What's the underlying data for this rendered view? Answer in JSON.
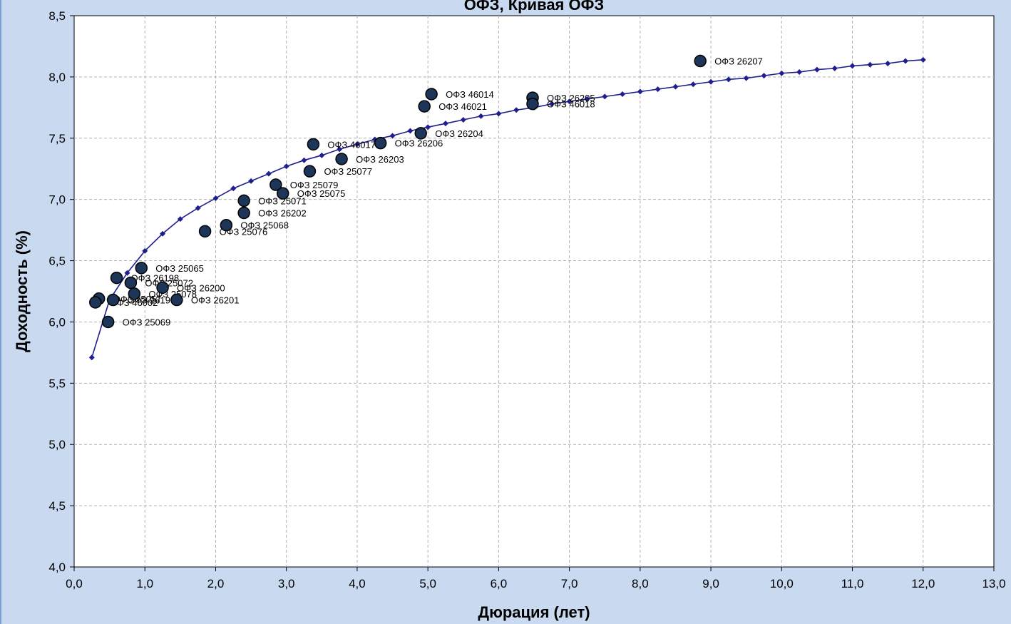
{
  "chart_data": {
    "type": "scatter",
    "title": "ОФЗ, Кривая ОФЗ",
    "xlabel": "Дюрация (лет)",
    "ylabel": "Доходность (%)",
    "xlim": [
      0,
      13
    ],
    "ylim": [
      4,
      8.5
    ],
    "x_ticks": [
      "0,0",
      "1,0",
      "2,0",
      "3,0",
      "4,0",
      "5,0",
      "6,0",
      "7,0",
      "8,0",
      "9,0",
      "10,0",
      "11,0",
      "12,0",
      "13,0"
    ],
    "y_ticks": [
      "4,0",
      "4,5",
      "5,0",
      "5,5",
      "6,0",
      "6,5",
      "7,0",
      "7,5",
      "8,0",
      "8,5"
    ],
    "grid": true,
    "colors": {
      "curve": "#1f1f8f",
      "point_fill": "#1c3558",
      "point_stroke": "#000000",
      "grid": "#b0b0b0",
      "plot_bg": "#ffffff"
    },
    "series": [
      {
        "kind": "curve",
        "x": [
          0.25,
          0.5,
          0.75,
          1.0,
          1.25,
          1.5,
          1.75,
          2.0,
          2.25,
          2.5,
          2.75,
          3.0,
          3.25,
          3.5,
          3.75,
          4.0,
          4.25,
          4.5,
          4.75,
          5.0,
          5.25,
          5.5,
          5.75,
          6.0,
          6.25,
          6.5,
          6.75,
          7.0,
          7.25,
          7.5,
          7.75,
          8.0,
          8.25,
          8.5,
          8.75,
          9.0,
          9.25,
          9.5,
          9.75,
          10.0,
          10.25,
          10.5,
          10.75,
          11.0,
          11.25,
          11.5,
          11.75,
          12.0
        ],
        "y": [
          5.71,
          6.18,
          6.4,
          6.58,
          6.72,
          6.84,
          6.93,
          7.01,
          7.09,
          7.15,
          7.21,
          7.27,
          7.32,
          7.36,
          7.41,
          7.45,
          7.49,
          7.52,
          7.56,
          7.59,
          7.62,
          7.65,
          7.68,
          7.7,
          7.73,
          7.75,
          7.78,
          7.8,
          7.82,
          7.84,
          7.86,
          7.88,
          7.9,
          7.92,
          7.94,
          7.96,
          7.98,
          7.99,
          8.01,
          8.03,
          8.04,
          8.06,
          8.07,
          8.09,
          8.1,
          8.11,
          8.13,
          8.14
        ]
      },
      {
        "kind": "bonds",
        "points": [
          {
            "x": 8.85,
            "y": 8.13,
            "label": "ОФЗ  26207"
          },
          {
            "x": 5.05,
            "y": 7.86,
            "label": "ОФЗ  46014"
          },
          {
            "x": 4.95,
            "y": 7.76,
            "label": "ОФЗ  46021"
          },
          {
            "x": 6.48,
            "y": 7.83,
            "label": "ОФЗ  26205"
          },
          {
            "x": 6.48,
            "y": 7.78,
            "label": "ОФЗ 46018"
          },
          {
            "x": 4.9,
            "y": 7.54,
            "label": "ОФЗ  26204"
          },
          {
            "x": 4.33,
            "y": 7.46,
            "label": "ОФЗ  26206"
          },
          {
            "x": 3.38,
            "y": 7.45,
            "label": "ОФЗ  46017"
          },
          {
            "x": 3.78,
            "y": 7.33,
            "label": "ОФЗ  26203"
          },
          {
            "x": 3.33,
            "y": 7.23,
            "label": "ОФЗ  25077"
          },
          {
            "x": 2.85,
            "y": 7.12,
            "label": "ОФЗ  25079"
          },
          {
            "x": 2.95,
            "y": 7.05,
            "label": "ОФЗ 25075"
          },
          {
            "x": 2.4,
            "y": 6.99,
            "label": "ОФЗ  25071"
          },
          {
            "x": 2.4,
            "y": 6.89,
            "label": "ОФЗ  26202"
          },
          {
            "x": 2.15,
            "y": 6.79,
            "label": "ОФЗ  25068"
          },
          {
            "x": 1.85,
            "y": 6.74,
            "label": "ОФЗ  25076"
          },
          {
            "x": 0.95,
            "y": 6.44,
            "label": "ОФЗ  25065"
          },
          {
            "x": 0.6,
            "y": 6.36,
            "label": "ОФЗ  26198"
          },
          {
            "x": 0.8,
            "y": 6.32,
            "label": "ОФЗ 25072"
          },
          {
            "x": 1.25,
            "y": 6.28,
            "label": "ОФЗ  26200"
          },
          {
            "x": 0.85,
            "y": 6.23,
            "label": "ОФЗ  25078"
          },
          {
            "x": 1.45,
            "y": 6.18,
            "label": "ОФЗ  26201"
          },
          {
            "x": 0.35,
            "y": 6.19,
            "label": "ОФЗ  25057"
          },
          {
            "x": 0.55,
            "y": 6.18,
            "label": "ОФЗ  26199"
          },
          {
            "x": 0.3,
            "y": 6.16,
            "label": "ОФЗ  46002"
          },
          {
            "x": 0.48,
            "y": 6.0,
            "label": "ОФЗ  25069"
          }
        ]
      }
    ]
  }
}
